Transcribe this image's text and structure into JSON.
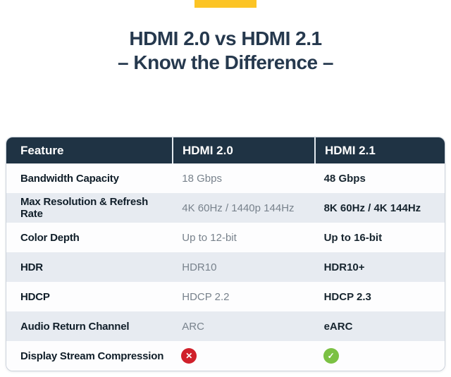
{
  "accent_bar": {
    "color": "#fcc425"
  },
  "title": {
    "line1": "HDMI 2.0 vs HDMI 2.1",
    "line2": "– Know the Difference –",
    "color": "#26394e"
  },
  "table": {
    "header": {
      "bg_color": "#1f3344",
      "feature_label": "Feature",
      "hdmi20_label": "HDMI 2.0",
      "hdmi21_label": "HDMI 2.1"
    },
    "row_alt_color": "#e7ebf1",
    "rows": [
      {
        "feature": "Bandwidth Capacity",
        "hdmi20": "18 Gbps",
        "hdmi21": "48 Gbps"
      },
      {
        "feature": "Max Resolution & Refresh Rate",
        "hdmi20": "4K 60Hz / 1440p 144Hz",
        "hdmi21": "8K 60Hz / 4K 144Hz"
      },
      {
        "feature": "Color Depth",
        "hdmi20": "Up to 12-bit",
        "hdmi21": "Up to 16-bit"
      },
      {
        "feature": "HDR",
        "hdmi20": "HDR10",
        "hdmi21": "HDR10+"
      },
      {
        "feature": "HDCP",
        "hdmi20": "HDCP 2.2",
        "hdmi21": "HDCP 2.3"
      },
      {
        "feature": "Audio Return Channel",
        "hdmi20": "ARC",
        "hdmi21": "eARC"
      },
      {
        "feature": "Display Stream Compression",
        "hdmi20": "",
        "hdmi21": ""
      }
    ],
    "icons": {
      "cross": {
        "name": "cross-circle-icon",
        "glyph": "✕",
        "color": "#d0202a"
      },
      "check": {
        "name": "check-circle-icon",
        "glyph": "✓",
        "color": "#7bc143"
      }
    }
  }
}
